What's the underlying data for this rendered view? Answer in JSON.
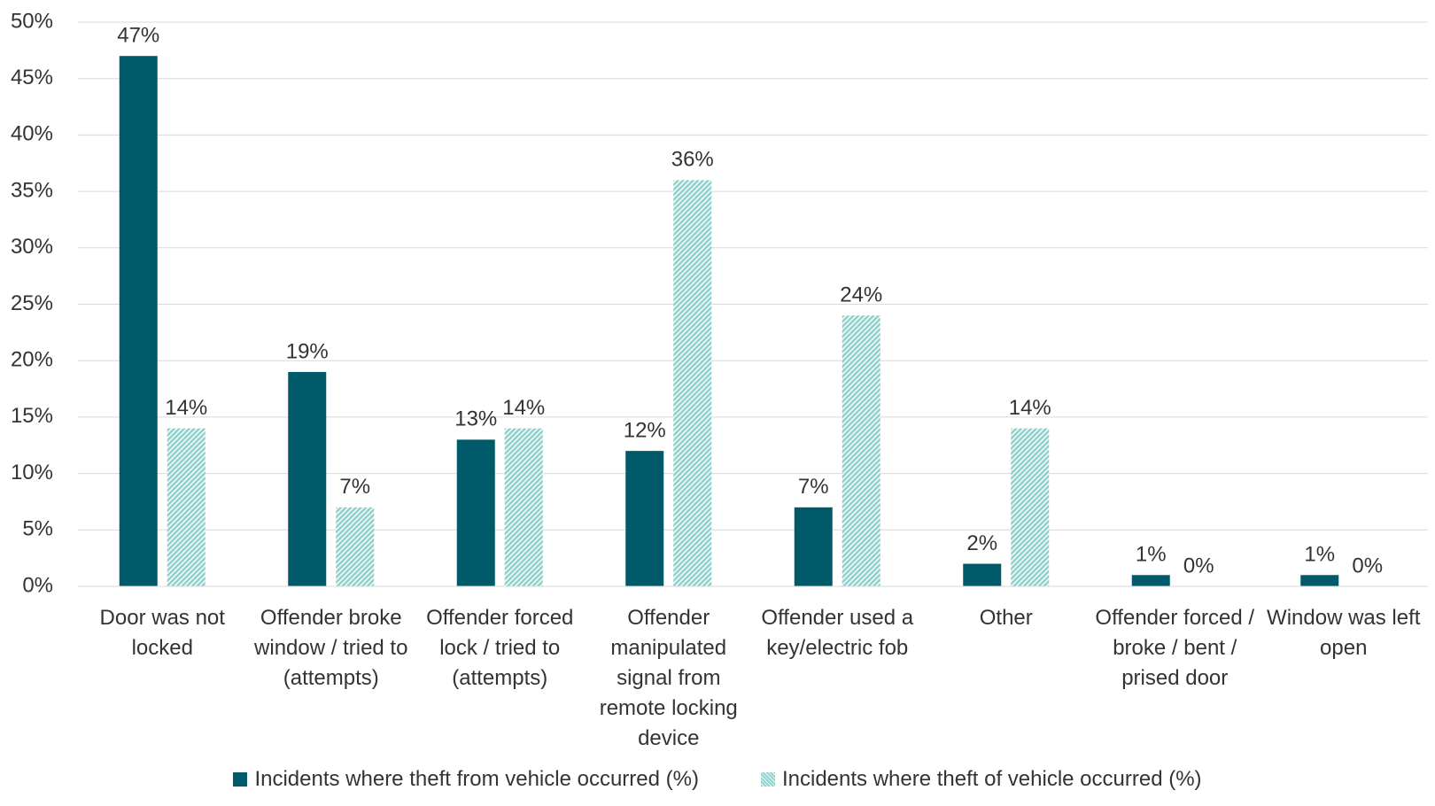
{
  "chart_data": {
    "type": "bar",
    "categories": [
      "Door was not locked",
      "Offender broke window / tried to (attempts)",
      "Offender forced lock / tried to (attempts)",
      "Offender manipulated signal from remote locking device",
      "Offender used a key/electric fob",
      "Other",
      "Offender forced / broke / bent / prised door",
      "Window was left open"
    ],
    "series": [
      {
        "name": "Incidents where theft from vehicle occurred (%)",
        "color": "#005a6a",
        "values": [
          47,
          19,
          13,
          12,
          7,
          2,
          1,
          1
        ],
        "value_labels": [
          "47%",
          "19%",
          "13%",
          "12%",
          "7%",
          "2%",
          "1%",
          "1%"
        ]
      },
      {
        "name": "Incidents where theft of vehicle occurred (%)",
        "color": "#8fd0cc",
        "pattern": "hatched",
        "values": [
          14,
          7,
          14,
          36,
          24,
          14,
          0,
          0
        ],
        "value_labels": [
          "14%",
          "7%",
          "14%",
          "36%",
          "24%",
          "14%",
          "0%",
          "0%"
        ]
      }
    ],
    "ylim": [
      0,
      50
    ],
    "yticks": [
      {
        "value": 0,
        "label": "0%"
      },
      {
        "value": 5,
        "label": "5%"
      },
      {
        "value": 10,
        "label": "10%"
      },
      {
        "value": 15,
        "label": "15%"
      },
      {
        "value": 20,
        "label": "20%"
      },
      {
        "value": 25,
        "label": "25%"
      },
      {
        "value": 30,
        "label": "30%"
      },
      {
        "value": 35,
        "label": "35%"
      },
      {
        "value": 40,
        "label": "40%"
      },
      {
        "value": 45,
        "label": "45%"
      },
      {
        "value": 50,
        "label": "50%"
      }
    ],
    "grid": true,
    "legend": "bottom"
  }
}
